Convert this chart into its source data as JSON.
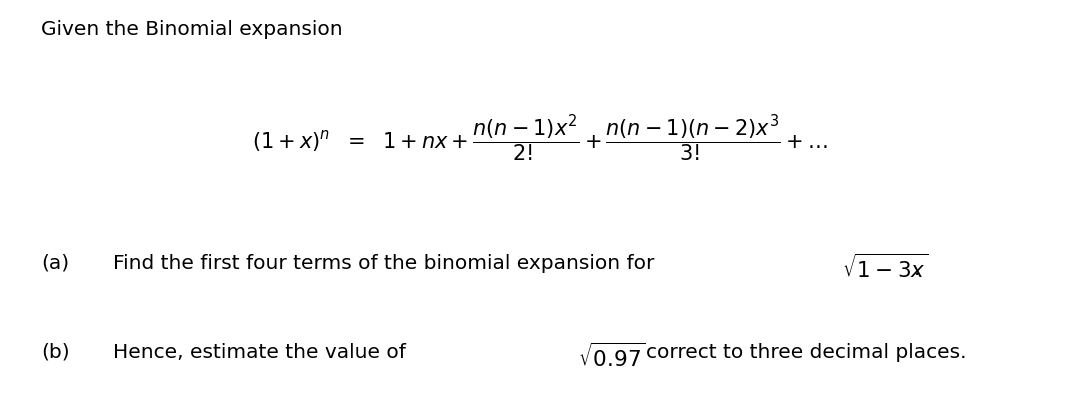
{
  "background_color": "#ffffff",
  "title_text": "Given the Binomial expansion",
  "title_fontsize": 14.5,
  "formula_fontsize": 15,
  "body_fontsize": 14.5,
  "part_a_label": "(a)",
  "part_a_text": "Find the first four terms of the binomial expansion for",
  "part_b_label": "(b)",
  "part_b_text": "Hence, estimate the value of",
  "part_b_text2": "correct to three decimal places."
}
